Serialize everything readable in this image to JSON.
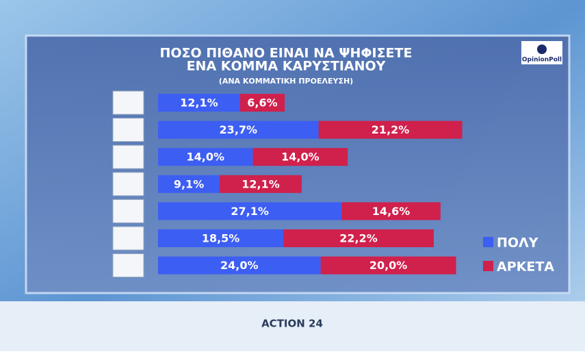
{
  "chart_data": {
    "type": "stacked-bar-horizontal",
    "title": [
      "ΠΟΣΟ ΠΙΘΑΝΟ ΕΙΝΑΙ ΝΑ ΨΗΦΙΣΕΤΕ",
      "ΕΝΑ ΚΟΜΜΑ ΚΑΡΥΣΤΙΑΝΟΥ"
    ],
    "subtitle": "(ΑΝΑ ΚΟΜΜΑΤΙΚΗ ΠΡΟΕΛΕΥΣΗ)",
    "categories": [
      null,
      null,
      null,
      null,
      null,
      null,
      null
    ],
    "series": [
      {
        "name": "ΠΟΛΥ",
        "color": "#3d5ef2",
        "values": [
          12.1,
          23.7,
          14.0,
          9.1,
          27.1,
          18.5,
          24.0
        ],
        "value_labels": [
          "12,1%",
          "23,7%",
          "14,0%",
          "9,1%",
          "27,1%",
          "18,5%",
          "24,0%"
        ]
      },
      {
        "name": "ΑΡΚΕΤΑ",
        "color": "#d0204c",
        "values": [
          6.6,
          21.2,
          14.0,
          12.1,
          14.6,
          22.2,
          20.0
        ],
        "value_labels": [
          "6,6%",
          "21,2%",
          "14,0%",
          "12,1%",
          "14,6%",
          "22,2%",
          "20,0%"
        ]
      }
    ]
  },
  "branding": {
    "pollster": "OpinionPoll",
    "channel": "ACTION 24"
  }
}
